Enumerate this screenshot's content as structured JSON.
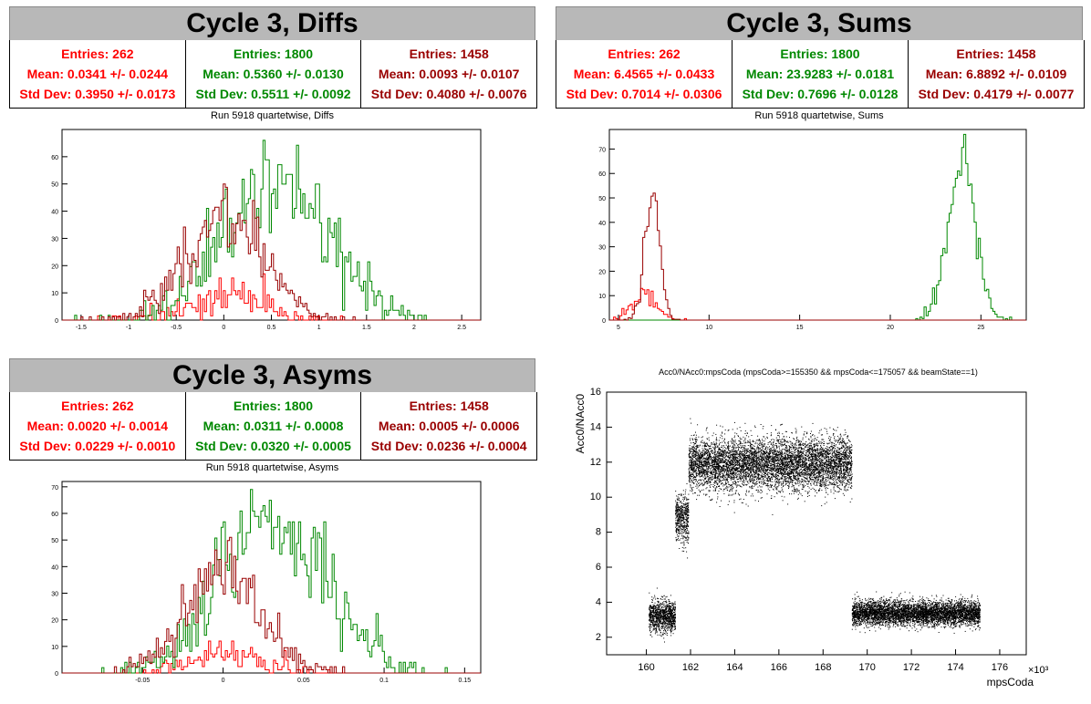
{
  "colors": {
    "red": "#ff0000",
    "green": "#008800",
    "darkred": "#990000"
  },
  "diffs": {
    "title": "Cycle 3, Diffs",
    "subtitle": "Run 5918 quartetwise, Diffs",
    "stats": [
      {
        "entries": "Entries: 262",
        "mean": "Mean: 0.0341 +/- 0.0244",
        "std": "Std Dev: 0.3950 +/- 0.0173"
      },
      {
        "entries": "Entries: 1800",
        "mean": "Mean: 0.5360 +/- 0.0130",
        "std": "Std Dev: 0.5511 +/- 0.0092"
      },
      {
        "entries": "Entries: 1458",
        "mean": "Mean: 0.0093 +/- 0.0107",
        "std": "Std Dev: 0.4080 +/- 0.0076"
      }
    ]
  },
  "sums": {
    "title": "Cycle 3, Sums",
    "subtitle": "Run 5918 quartetwise, Sums",
    "stats": [
      {
        "entries": "Entries: 262",
        "mean": "Mean: 6.4565 +/- 0.0433",
        "std": "Std Dev: 0.7014 +/- 0.0306"
      },
      {
        "entries": "Entries: 1800",
        "mean": "Mean: 23.9283 +/- 0.0181",
        "std": "Std Dev: 0.7696 +/- 0.0128"
      },
      {
        "entries": "Entries: 1458",
        "mean": "Mean: 6.8892 +/- 0.0109",
        "std": "Std Dev: 0.4179 +/- 0.0077"
      }
    ]
  },
  "asyms": {
    "title": "Cycle 3, Asyms",
    "subtitle": "Run 5918 quartetwise, Asyms",
    "stats": [
      {
        "entries": "Entries: 262",
        "mean": "Mean: 0.0020 +/- 0.0014",
        "std": "Std Dev: 0.0229 +/- 0.0010"
      },
      {
        "entries": "Entries: 1800",
        "mean": "Mean: 0.0311 +/- 0.0008",
        "std": "Std Dev: 0.0320 +/- 0.0005"
      },
      {
        "entries": "Entries: 1458",
        "mean": "Mean: 0.0005 +/- 0.0006",
        "std": "Std Dev: 0.0236 +/- 0.0004"
      }
    ]
  },
  "scatter": {
    "title": "Acc0/NAcc0:mpsCoda (mpsCoda>=155350 && mpsCoda<=175057 && beamState==1)",
    "xlabel": "mpsCoda",
    "ylabel": "Acc0/NAcc0",
    "exponent": "×10³"
  },
  "chart_data": [
    {
      "type": "histogram",
      "title": "Run 5918 quartetwise, Diffs",
      "xlim": [
        -1.7,
        2.7
      ],
      "ylim": [
        0,
        70
      ],
      "xticks": [
        "-1.5",
        "-1",
        "-0.5",
        "0",
        "0.5",
        "1",
        "1.5",
        "2",
        "2.5"
      ],
      "yticks": [
        "0",
        "10",
        "20",
        "30",
        "40",
        "50",
        "60"
      ],
      "series": [
        {
          "color": "red",
          "entries": 262,
          "mean": 0.0341,
          "std": 0.395,
          "peak": 17
        },
        {
          "color": "green",
          "entries": 1800,
          "mean": 0.536,
          "std": 0.5511,
          "peak": 66
        },
        {
          "color": "darkred",
          "entries": 1458,
          "mean": 0.0093,
          "std": 0.408,
          "peak": 50
        }
      ]
    },
    {
      "type": "histogram",
      "title": "Run 5918 quartetwise, Sums",
      "xlim": [
        4.5,
        27.5
      ],
      "ylim": [
        0,
        78
      ],
      "xticks": [
        "5",
        "10",
        "15",
        "20",
        "25"
      ],
      "yticks": [
        "0",
        "10",
        "20",
        "30",
        "40",
        "50",
        "60",
        "70"
      ],
      "series": [
        {
          "color": "red",
          "entries": 262,
          "mean": 6.4565,
          "std": 0.7014,
          "peak": 13
        },
        {
          "color": "green",
          "entries": 1800,
          "mean": 23.9283,
          "std": 0.7696,
          "peak": 76
        },
        {
          "color": "darkred",
          "entries": 1458,
          "mean": 6.8892,
          "std": 0.4179,
          "peak": 52
        }
      ]
    },
    {
      "type": "histogram",
      "title": "Run 5918 quartetwise, Asyms",
      "xlim": [
        -0.1,
        0.16
      ],
      "ylim": [
        0,
        72
      ],
      "xticks": [
        "-0.05",
        "0",
        "0.05",
        "0.1",
        "0.15"
      ],
      "yticks": [
        "0",
        "10",
        "20",
        "30",
        "40",
        "50",
        "60",
        "70"
      ],
      "series": [
        {
          "color": "red",
          "entries": 262,
          "mean": 0.002,
          "std": 0.0229,
          "peak": 12
        },
        {
          "color": "green",
          "entries": 1800,
          "mean": 0.0311,
          "std": 0.032,
          "peak": 69
        },
        {
          "color": "darkred",
          "entries": 1458,
          "mean": 0.0005,
          "std": 0.0236,
          "peak": 51
        }
      ]
    },
    {
      "type": "scatter",
      "title": "Acc0/NAcc0:mpsCoda (mpsCoda>=155350 && mpsCoda<=175057 && beamState==1)",
      "xlabel": "mpsCoda",
      "ylabel": "Acc0/NAcc0",
      "xlim": [
        158.2,
        177.2
      ],
      "ylim": [
        1,
        16
      ],
      "xticks": [
        "160",
        "162",
        "164",
        "166",
        "168",
        "170",
        "172",
        "174",
        "176"
      ],
      "yticks": [
        "2",
        "4",
        "6",
        "8",
        "10",
        "12",
        "14",
        "16"
      ],
      "clusters": [
        {
          "x": [
            160.1,
            161.3
          ],
          "ymean": 3.2,
          "ysd": 0.45
        },
        {
          "x": [
            161.3,
            161.9
          ],
          "ymean": 8.8,
          "ysd": 0.7
        },
        {
          "x": [
            161.9,
            169.3
          ],
          "ymean": 11.9,
          "ysd": 0.75
        },
        {
          "x": [
            169.3,
            175.1
          ],
          "ymean": 3.4,
          "ysd": 0.35
        }
      ]
    }
  ]
}
